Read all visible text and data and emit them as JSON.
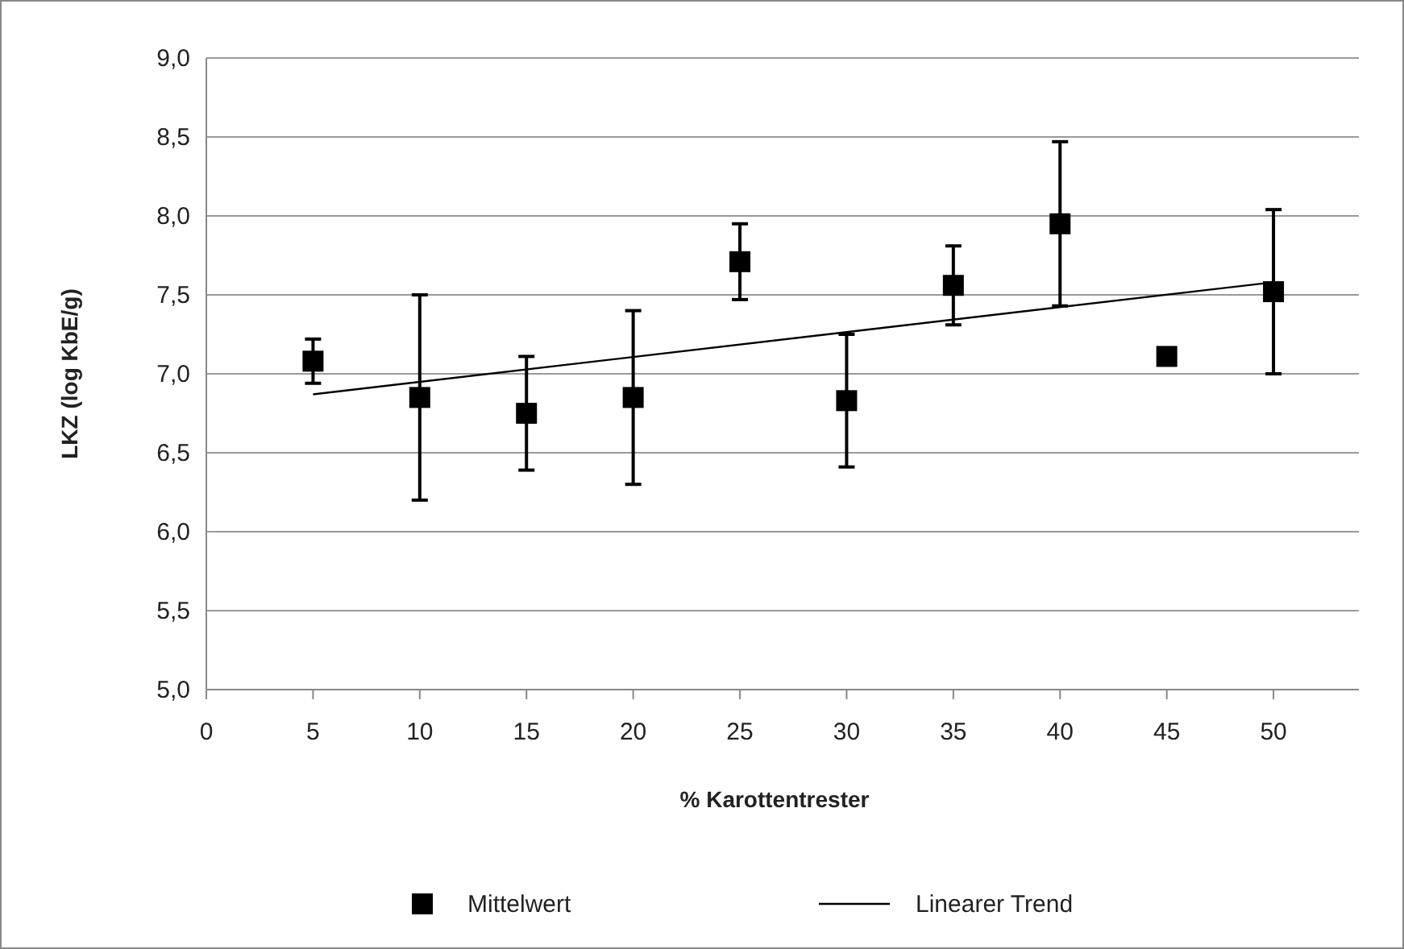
{
  "chart_data": {
    "type": "scatter",
    "xlabel": "% Karottentrester",
    "ylabel": "LKZ (log KbE/g)",
    "xlim": [
      0,
      54
    ],
    "xticks": [
      0,
      5,
      10,
      15,
      20,
      25,
      30,
      35,
      40,
      45,
      50
    ],
    "ylim": [
      5,
      9
    ],
    "yticks": [
      {
        "value": 5,
        "label": "5,0"
      },
      {
        "value": 5.5,
        "label": "5,5"
      },
      {
        "value": 6,
        "label": "6,0"
      },
      {
        "value": 6.5,
        "label": "6,5"
      },
      {
        "value": 7,
        "label": "7,0"
      },
      {
        "value": 7.5,
        "label": "7,5"
      },
      {
        "value": 8,
        "label": "8,0"
      },
      {
        "value": 8.5,
        "label": "8,5"
      },
      {
        "value": 9,
        "label": "9,0"
      }
    ],
    "grid": "y",
    "legend": "bottom",
    "series": [
      {
        "name": "Mittelwert",
        "color": "#000000",
        "marker": "square",
        "x": [
          5,
          10,
          15,
          20,
          25,
          30,
          35,
          40,
          45,
          50
        ],
        "values": [
          7.08,
          6.85,
          6.75,
          6.85,
          7.71,
          6.83,
          7.56,
          7.95,
          7.11,
          7.52
        ],
        "errors": [
          0.14,
          0.65,
          0.36,
          0.55,
          0.24,
          0.42,
          0.25,
          0.52,
          null,
          0.52
        ]
      },
      {
        "name": "Linearer Trend",
        "type": "line",
        "color": "#000000",
        "marker": "none",
        "line_style": "solid",
        "x": [
          5,
          50
        ],
        "values": [
          6.87,
          7.58
        ]
      }
    ]
  }
}
